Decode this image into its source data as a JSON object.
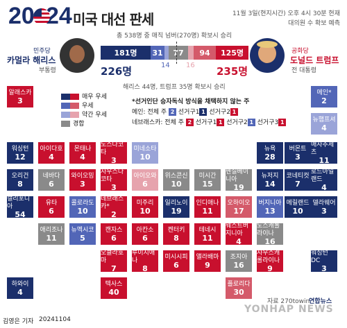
{
  "header": {
    "year_left": "20",
    "year_right": "24",
    "title": "미국 대선 판세",
    "timestamp": "11월 3일(현지시간) 오후 4시 30분 현재",
    "subtitle": "대의원 수 확보 예측"
  },
  "summary": {
    "total": "총 538명 중 매직 넘버(270명) 확보시 승리",
    "footnote": "해리스 44명, 트럼프 35명 확보시 승리"
  },
  "candidates": {
    "left": {
      "party": "민주당",
      "name": "카멀라 해리스",
      "role": "부통령",
      "total": "226명"
    },
    "right": {
      "party": "공화당",
      "name": "도널드 트럼프",
      "role": "전 대통령",
      "total": "235명"
    }
  },
  "bar": {
    "segments": [
      "181명",
      "31",
      "77",
      "94",
      "125명"
    ],
    "below": [
      "14",
      "16"
    ]
  },
  "legend": {
    "items": [
      "매우 우세",
      "우세",
      "약간 우세",
      "경합"
    ],
    "colors": [
      "#1b2f6b",
      "#5266b7",
      "#9aa4d8",
      "#8a8a8a"
    ]
  },
  "rules": {
    "title": "*선거인단 승자독식 방식을 채택하지 않는 주",
    "maine": "메인: 전체 주",
    "maine_d1": "선거구1",
    "maine_d2": "선거구2",
    "nebraska": "네브래스카: 전체 주",
    "ne_d1": "선거구1",
    "ne_d2": "선거구2",
    "ne_d3": "선거구3",
    "badge_2": "2",
    "badge_1": "1"
  },
  "states": [
    {
      "name": "알래스카",
      "ev": "3",
      "c": "#c8102e"
    },
    {
      "name": "메인*",
      "ev": "2",
      "c": "#5266b7"
    },
    {
      "name": "뉴햄프셔",
      "ev": "4",
      "c": "#9aa4d8"
    },
    {
      "name": "워싱턴",
      "ev": "12",
      "c": "#1b2f6b"
    },
    {
      "name": "아이다호",
      "ev": "4",
      "c": "#c8102e"
    },
    {
      "name": "몬태나",
      "ev": "4",
      "c": "#c8102e"
    },
    {
      "name": "노스다코타",
      "ev": "3",
      "c": "#c8102e"
    },
    {
      "name": "미네소타",
      "ev": "10",
      "c": "#9aa4d8"
    },
    {
      "name": "뉴욕",
      "ev": "28",
      "c": "#1b2f6b"
    },
    {
      "name": "버몬트",
      "ev": "3",
      "c": "#1b2f6b"
    },
    {
      "name": "매사추세츠",
      "ev": "11",
      "c": "#1b2f6b"
    },
    {
      "name": "오리건",
      "ev": "8",
      "c": "#1b2f6b"
    },
    {
      "name": "네바다",
      "ev": "6",
      "c": "#8a8a8a"
    },
    {
      "name": "와이오밍",
      "ev": "3",
      "c": "#c8102e"
    },
    {
      "name": "사우스다코타",
      "ev": "3",
      "c": "#c8102e"
    },
    {
      "name": "아이오와",
      "ev": "6",
      "c": "#e6a3ad"
    },
    {
      "name": "위스콘신",
      "ev": "10",
      "c": "#8a8a8a"
    },
    {
      "name": "미시간",
      "ev": "15",
      "c": "#8a8a8a"
    },
    {
      "name": "펜실베이니아",
      "ev": "19",
      "c": "#8a8a8a"
    },
    {
      "name": "뉴저지",
      "ev": "14",
      "c": "#1b2f6b"
    },
    {
      "name": "코네티컷",
      "ev": "7",
      "c": "#1b2f6b"
    },
    {
      "name": "로드아일랜드",
      "ev": "4",
      "c": "#1b2f6b"
    },
    {
      "name": "캘리포니아",
      "ev": "54",
      "c": "#1b2f6b"
    },
    {
      "name": "유타",
      "ev": "6",
      "c": "#c8102e"
    },
    {
      "name": "콜로라도",
      "ev": "10",
      "c": "#5266b7"
    },
    {
      "name": "네브래스카*",
      "ev": "2",
      "c": "#c8102e"
    },
    {
      "name": "미주리",
      "ev": "10",
      "c": "#c8102e"
    },
    {
      "name": "일리노이",
      "ev": "19",
      "c": "#1b2f6b"
    },
    {
      "name": "인디애나",
      "ev": "11",
      "c": "#c8102e"
    },
    {
      "name": "오하이오",
      "ev": "17",
      "c": "#d45a6a"
    },
    {
      "name": "버지니아",
      "ev": "13",
      "c": "#5266b7"
    },
    {
      "name": "메릴랜드",
      "ev": "10",
      "c": "#1b2f6b"
    },
    {
      "name": "델라웨어",
      "ev": "3",
      "c": "#1b2f6b"
    },
    {
      "name": "애리조나",
      "ev": "11",
      "c": "#8a8a8a"
    },
    {
      "name": "뉴멕시코",
      "ev": "5",
      "c": "#5266b7"
    },
    {
      "name": "캔자스",
      "ev": "6",
      "c": "#c8102e"
    },
    {
      "name": "아칸소",
      "ev": "6",
      "c": "#c8102e"
    },
    {
      "name": "켄터키",
      "ev": "8",
      "c": "#c8102e"
    },
    {
      "name": "테네시",
      "ev": "11",
      "c": "#c8102e"
    },
    {
      "name": "웨스트버지니아",
      "ev": "4",
      "c": "#c8102e"
    },
    {
      "name": "노스캐롤라이나",
      "ev": "16",
      "c": "#8a8a8a"
    },
    {
      "name": "오클라호마",
      "ev": "7",
      "c": "#c8102e"
    },
    {
      "name": "루이지애나",
      "ev": "8",
      "c": "#c8102e"
    },
    {
      "name": "미시시피",
      "ev": "6",
      "c": "#c8102e"
    },
    {
      "name": "앨라배마",
      "ev": "9",
      "c": "#c8102e"
    },
    {
      "name": "조지아",
      "ev": "16",
      "c": "#8a8a8a"
    },
    {
      "name": "사우스캐롤라이나",
      "ev": "9",
      "c": "#c8102e"
    },
    {
      "name": "워싱턴 DC",
      "ev": "3",
      "c": "#1b2f6b"
    },
    {
      "name": "텍사스",
      "ev": "40",
      "c": "#c8102e"
    },
    {
      "name": "플로리다",
      "ev": "30",
      "c": "#d45a6a"
    },
    {
      "name": "하와이",
      "ev": "4",
      "c": "#1b2f6b"
    }
  ],
  "footer": {
    "byline": "김영은 기자",
    "date": "20241104",
    "source": "자료 270towin",
    "agency": "연합뉴스",
    "brand": "YONHAP NEWS"
  }
}
